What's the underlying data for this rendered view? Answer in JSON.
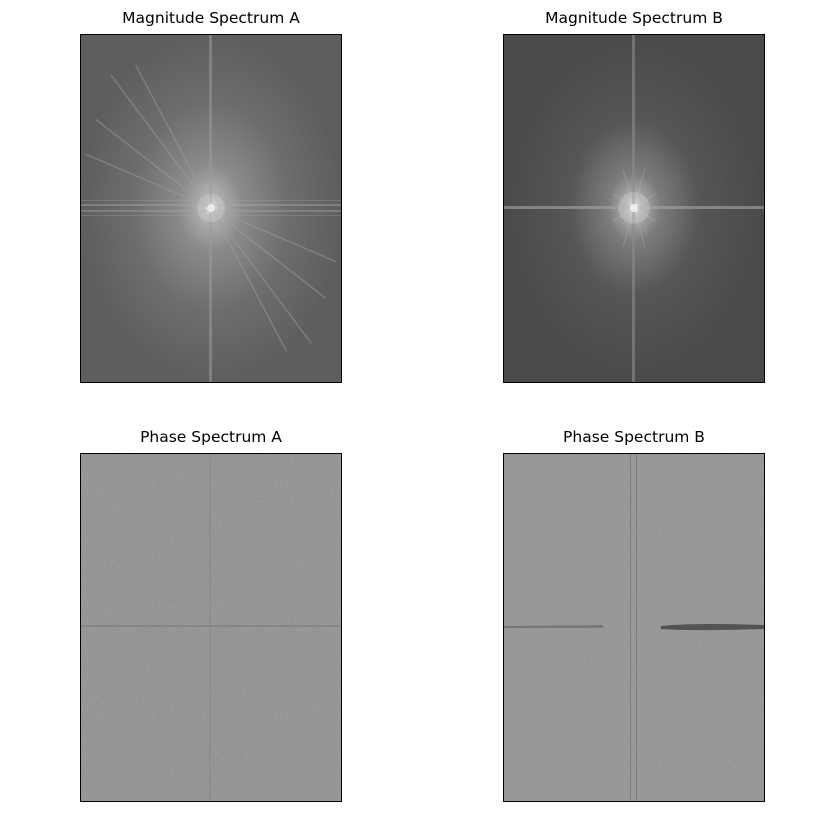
{
  "figure": {
    "panels": [
      {
        "id": "mag_a",
        "title": "Magnitude Spectrum A"
      },
      {
        "id": "mag_b",
        "title": "Magnitude Spectrum B"
      },
      {
        "id": "ph_a",
        "title": "Phase Spectrum A"
      },
      {
        "id": "ph_b",
        "title": "Phase Spectrum B"
      }
    ]
  },
  "chart_data": [
    {
      "type": "heatmap",
      "title": "Magnitude Spectrum A",
      "colormap": "gray",
      "axes_visible": false,
      "features": [
        "bright centered DC peak",
        "horizontal and vertical cross lines",
        "diagonal streaks through center"
      ]
    },
    {
      "type": "heatmap",
      "title": "Magnitude Spectrum B",
      "colormap": "gray",
      "axes_visible": false,
      "features": [
        "bright centered DC peak",
        "horizontal and vertical cross lines"
      ]
    },
    {
      "type": "heatmap",
      "title": "Phase Spectrum A",
      "colormap": "gray",
      "axes_visible": false,
      "features": [
        "uniform noise",
        "faint horizontal line through center"
      ]
    },
    {
      "type": "heatmap",
      "title": "Phase Spectrum B",
      "colormap": "gray",
      "axes_visible": false,
      "features": [
        "uniform noise",
        "vertical and horizontal line artifacts through center"
      ]
    }
  ]
}
